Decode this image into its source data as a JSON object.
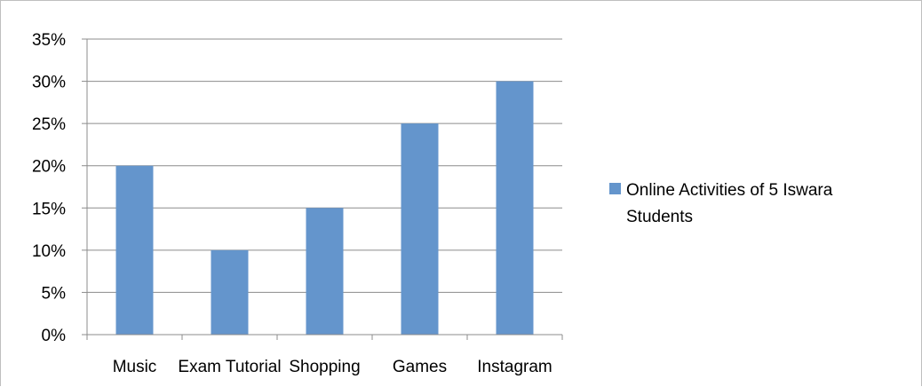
{
  "chart_data": {
    "type": "bar",
    "categories": [
      "Music",
      "Exam Tutorial",
      "Shopping",
      "Games",
      "Instagram"
    ],
    "series": [
      {
        "name": "Online Activities of  5 Iswara Students",
        "values": [
          0.2,
          0.1,
          0.15,
          0.25,
          0.3
        ]
      }
    ],
    "y_tick_labels": [
      "0%",
      "5%",
      "10%",
      "15%",
      "20%",
      "25%",
      "30%",
      "35%"
    ],
    "ylim": [
      0,
      0.35
    ],
    "grid": true,
    "legend_position": "right",
    "legend_lines": [
      "Online Activities of  5 Iswara",
      "Students"
    ],
    "bar_color": "#6495cc",
    "grid_color": "#8c8c8c"
  }
}
